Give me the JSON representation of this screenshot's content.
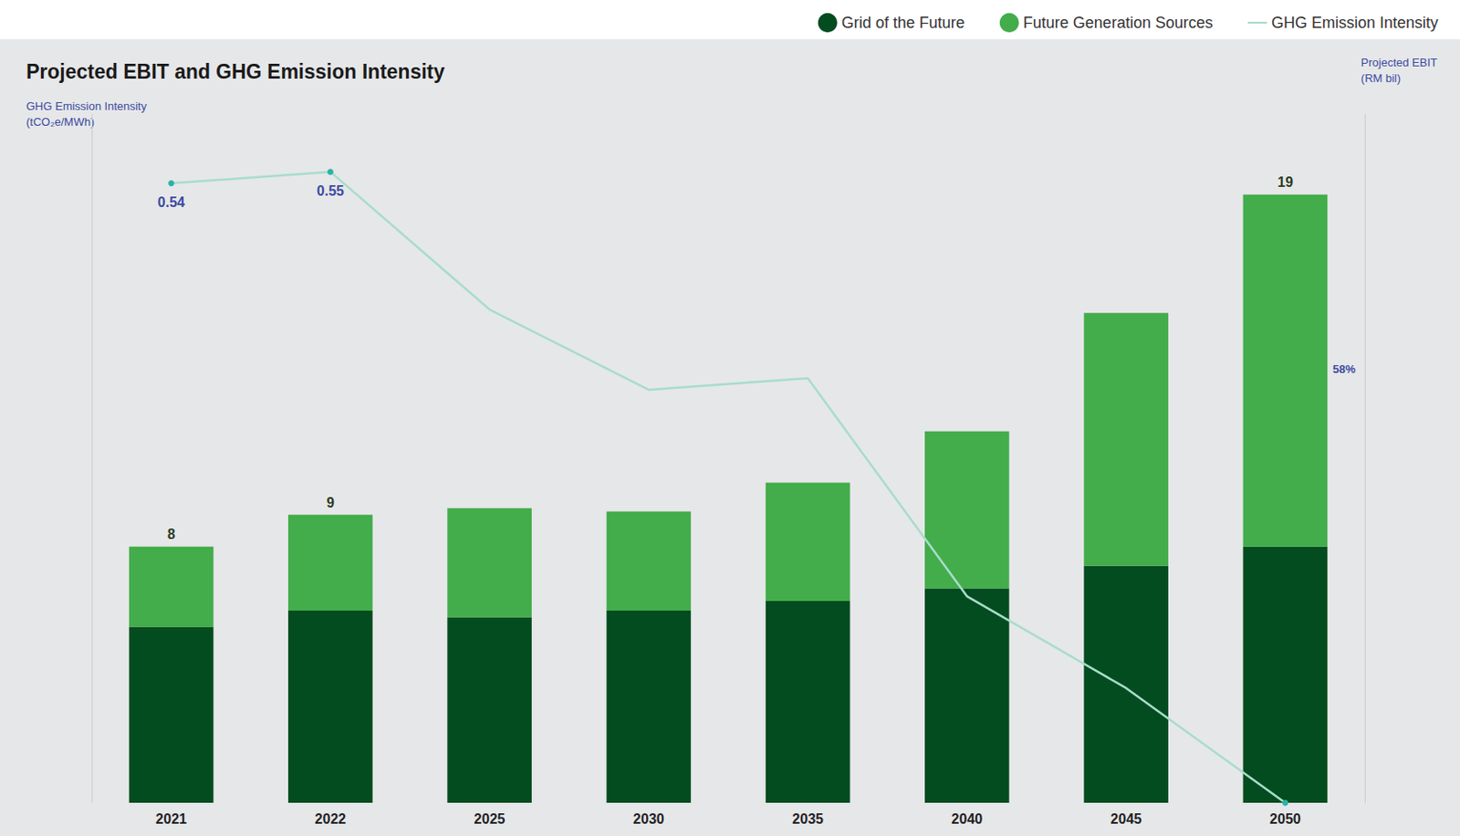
{
  "chart_data": {
    "type": "bar",
    "title": "Projected EBIT and GHG Emission Intensity",
    "ylabel": "Projected EBIT\n(RM bil)",
    "y2label": "GHG Emission Intensity\n(tCO₂e/MWh)",
    "categories": [
      "2021",
      "2022",
      "2025",
      "2030",
      "2035",
      "2040",
      "2045",
      "2050"
    ],
    "series": [
      {
        "name": "Grid of the Future",
        "type": "bar",
        "color": "#034c1f",
        "values": [
          5.5,
          6.0,
          5.8,
          6.0,
          6.3,
          6.7,
          7.4,
          8.0
        ]
      },
      {
        "name": "Future Generation Sources",
        "type": "bar",
        "color": "#42ad4a",
        "values": [
          2.5,
          3.0,
          3.4,
          3.1,
          3.7,
          4.9,
          7.9,
          11.0
        ],
        "total_labels": [
          8,
          9,
          null,
          null,
          null,
          null,
          null,
          19
        ]
      },
      {
        "name": "GHG Emission Intensity",
        "type": "line",
        "axis": "y2",
        "color": "#a9dccb",
        "marker": "circle",
        "values": [
          0.54,
          0.55,
          0.43,
          0.36,
          0.37,
          0.18,
          0.1,
          0
        ],
        "value_labels": [
          "0.54",
          "0.55",
          null,
          null,
          null,
          null,
          null,
          null
        ]
      }
    ],
    "stacked": true,
    "data_labels": true,
    "ylim": [
      0,
      21.5
    ],
    "y2lim": [
      0,
      0.6
    ],
    "tick_labels": false,
    "grid": false,
    "legend": "top-right",
    "annotations": [
      {
        "text": "58%",
        "x": "2050"
      }
    ]
  }
}
